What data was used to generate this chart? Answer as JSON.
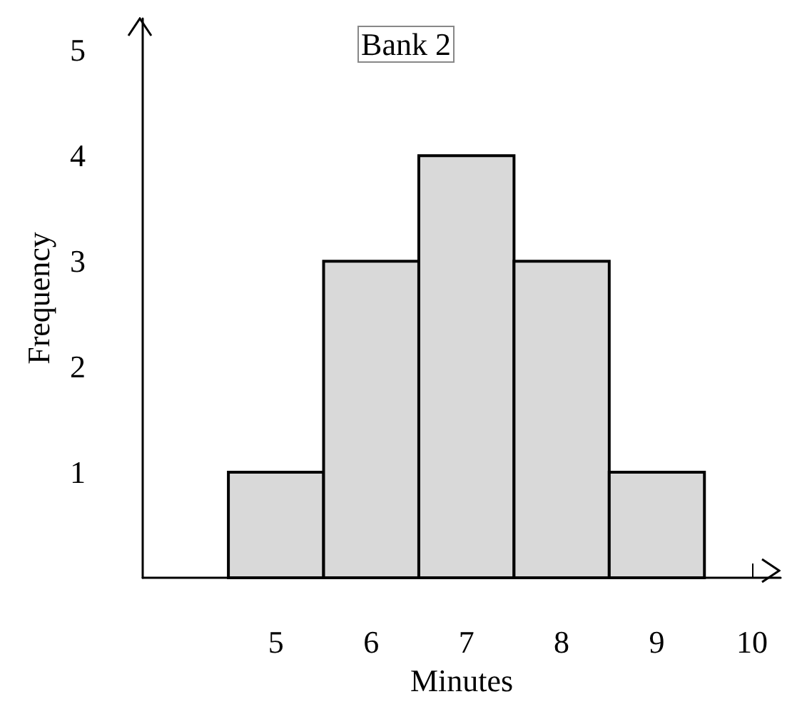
{
  "chart_data": {
    "type": "histogram",
    "title": "Bank 2",
    "xlabel": "Minutes",
    "ylabel": "Frequency",
    "bins": [
      4.5,
      5.5,
      6.5,
      7.5,
      8.5,
      9.5
    ],
    "values": [
      1,
      3,
      4,
      3,
      1
    ],
    "color": "#d9d9d9",
    "xlim": [
      3.6,
      10.3
    ],
    "xticks": [
      5,
      6,
      7,
      8,
      9,
      10
    ],
    "ylim": [
      0,
      5.3
    ],
    "yticks": [
      1,
      2,
      3,
      4,
      5
    ]
  }
}
